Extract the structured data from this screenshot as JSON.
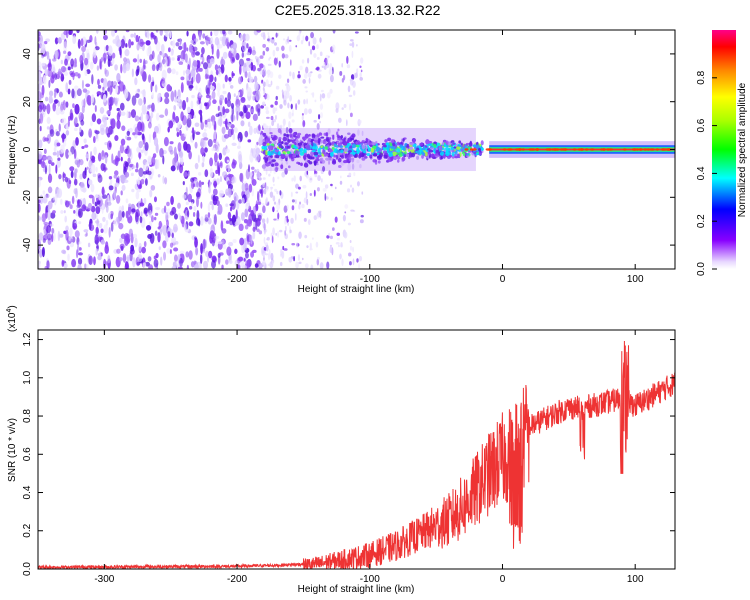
{
  "figure": {
    "title": "C2E5.2025.318.13.32.R22"
  },
  "chart_data": [
    {
      "type": "heatmap",
      "name": "spectrogram",
      "xlabel": "Height of straight line (km)",
      "ylabel": "Frequency (Hz)",
      "xlim": [
        -350,
        130
      ],
      "ylim": [
        -50,
        50
      ],
      "xticks": [
        -300,
        -200,
        -100,
        0,
        100
      ],
      "xtick_labels": [
        "-300",
        "-200",
        "-100",
        "0",
        "100"
      ],
      "yticks": [
        -40,
        -20,
        0,
        20,
        40
      ],
      "ytick_labels": [
        "-40",
        "-20",
        "0",
        "20",
        "40"
      ],
      "colorbar": {
        "label": "Normalized spectral amplitude",
        "range": [
          0,
          1
        ],
        "ticks": [
          0,
          0.2,
          0.4,
          0.6,
          0.8
        ],
        "tick_labels": [
          "0.0",
          "0.2",
          "0.4",
          "0.6",
          "0.8"
        ]
      },
      "regions": [
        {
          "description": "broadband noise",
          "x": [
            -350,
            -180
          ],
          "y": [
            -50,
            50
          ],
          "amplitude": 0.12
        },
        {
          "description": "fading noise",
          "x": [
            -180,
            -120
          ],
          "y": [
            -50,
            50
          ],
          "amplitude": 0.06
        },
        {
          "description": "signal cluster",
          "x": [
            -180,
            -20
          ],
          "y": [
            -8,
            8
          ],
          "amplitude": 0.35
        },
        {
          "description": "carrier line",
          "x": [
            -10,
            130
          ],
          "y": [
            -1,
            1
          ],
          "amplitude": 0.95
        }
      ]
    },
    {
      "type": "line",
      "name": "snr",
      "xlabel": "Height of straight line (km)",
      "ylabel": "SNR (10 * v/v)",
      "multiplier_label": "(x10",
      "multiplier_exp": "4",
      "multiplier_close": ")",
      "xlim": [
        -350,
        130
      ],
      "ylim": [
        0,
        1.25
      ],
      "xticks": [
        -300,
        -200,
        -100,
        0,
        100
      ],
      "xtick_labels": [
        "-300",
        "-200",
        "-100",
        "0",
        "100"
      ],
      "yticks": [
        0,
        0.2,
        0.4,
        0.6,
        0.8,
        1.0,
        1.2
      ],
      "ytick_labels": [
        "0.0",
        "0.2",
        "0.4",
        "0.6",
        "0.8",
        "1.0",
        "1.2"
      ],
      "color": "#ee3333",
      "trend": {
        "x": [
          -350,
          -200,
          -170,
          -140,
          -100,
          -80,
          -60,
          -40,
          -30,
          -20,
          -10,
          0,
          5,
          10,
          15,
          20,
          40,
          50,
          60,
          80,
          90,
          95,
          100,
          110,
          120,
          130
        ],
        "y": [
          0.01,
          0.015,
          0.02,
          0.03,
          0.08,
          0.13,
          0.2,
          0.27,
          0.34,
          0.43,
          0.52,
          0.6,
          0.62,
          0.65,
          0.7,
          0.75,
          0.82,
          0.85,
          0.85,
          0.88,
          0.9,
          0.88,
          0.86,
          0.9,
          0.94,
          0.98
        ]
      }
    }
  ]
}
